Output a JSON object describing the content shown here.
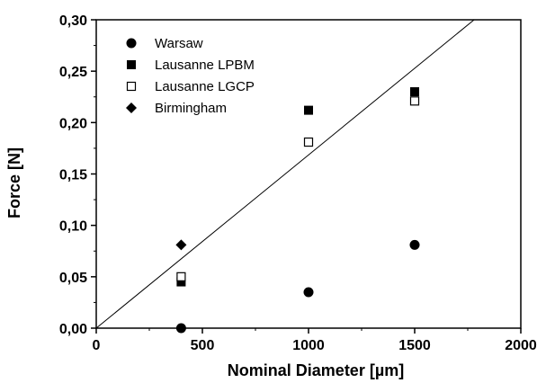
{
  "chart_data": {
    "type": "scatter",
    "title": "",
    "xlabel": "Nominal Diameter  [µm]",
    "ylabel": "Force  [N]",
    "xlim": [
      0,
      2000
    ],
    "ylim": [
      0,
      0.3
    ],
    "x_ticks": [
      "0",
      "500",
      "1000",
      "1500",
      "2000"
    ],
    "y_ticks": [
      "0,00",
      "0,05",
      "0,10",
      "0,15",
      "0,20",
      "0,25",
      "0,30"
    ],
    "grid": false,
    "legend_position": "top-left",
    "series": [
      {
        "name": "Warsaw",
        "marker": "filled-circle",
        "points": [
          [
            400,
            0.0
          ],
          [
            1000,
            0.035
          ],
          [
            1500,
            0.081
          ]
        ]
      },
      {
        "name": "Lausanne LPBM",
        "marker": "filled-square",
        "points": [
          [
            400,
            0.045
          ],
          [
            1000,
            0.212
          ],
          [
            1500,
            0.23
          ]
        ]
      },
      {
        "name": "Lausanne LGCP",
        "marker": "open-square",
        "points": [
          [
            400,
            0.05
          ],
          [
            1000,
            0.181
          ],
          [
            1500,
            0.221
          ]
        ]
      },
      {
        "name": "Birmingham",
        "marker": "filled-diamond",
        "points": [
          [
            400,
            0.081
          ]
        ]
      }
    ],
    "reference_line": {
      "points": [
        [
          0,
          0.0
        ],
        [
          1780,
          0.3
        ]
      ]
    }
  }
}
